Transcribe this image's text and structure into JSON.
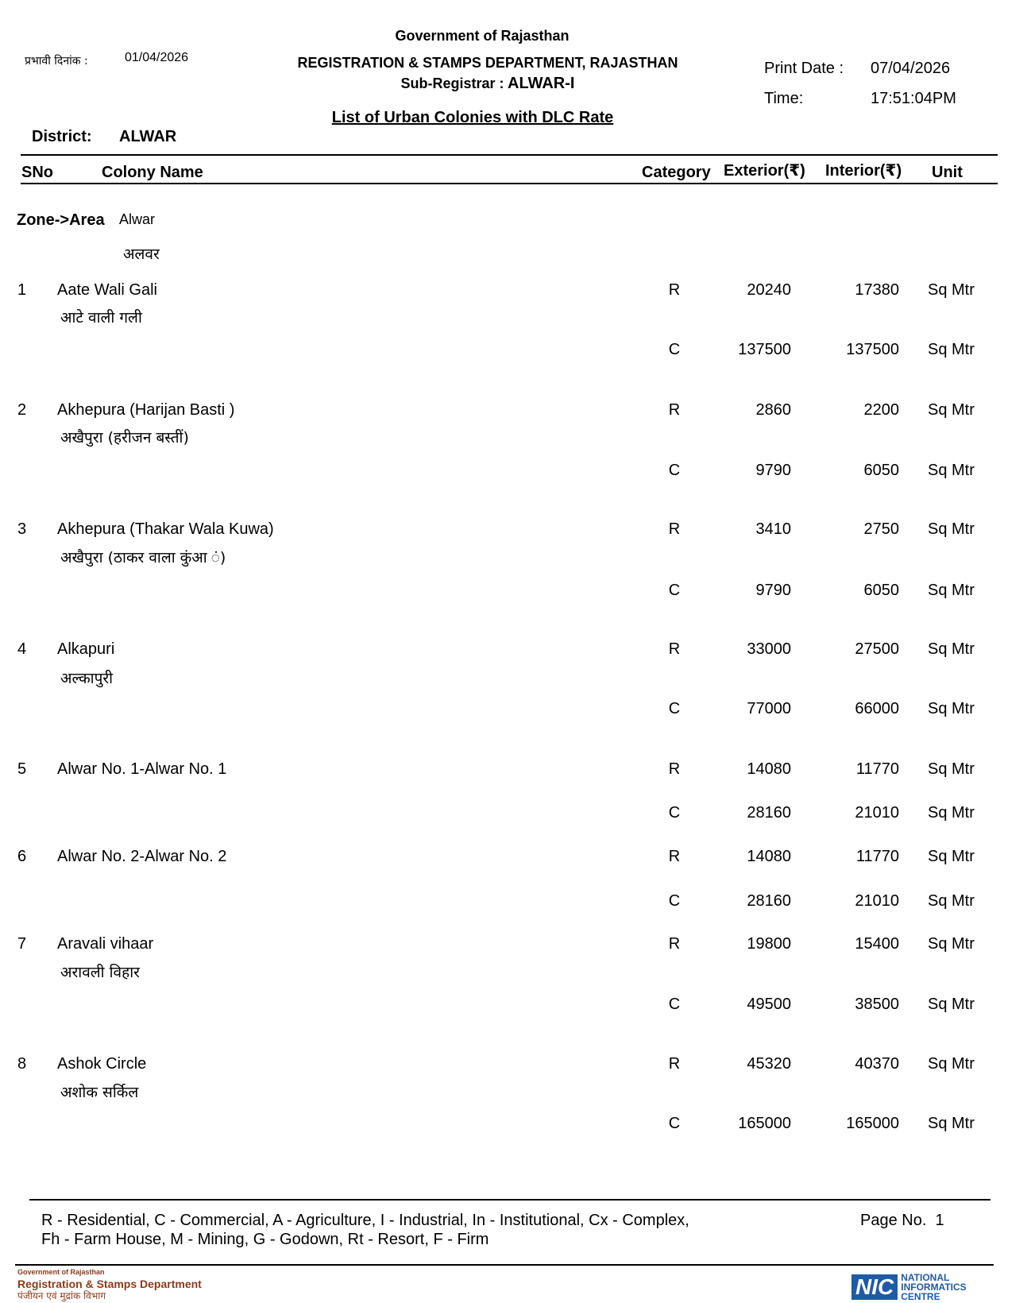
{
  "header": {
    "govt": "Government of Rajasthan",
    "effective_label": "प्रभावी दिनांक :",
    "effective_date": "01/04/2026",
    "department": "REGISTRATION & STAMPS DEPARTMENT, RAJASTHAN",
    "subregistrar_label": "Sub-Registrar :",
    "subregistrar": "ALWAR-I",
    "print_date_label": "Print Date :",
    "print_date": "07/04/2026",
    "time_label": "Time:",
    "time": "17:51:04PM",
    "title": "List of Urban Colonies with DLC Rate",
    "district_label": "District:",
    "district": "ALWAR"
  },
  "columns": {
    "sno": "SNo",
    "colony": "Colony Name",
    "category": "Category",
    "exterior": "Exterior(₹)",
    "interior": "Interior(₹)",
    "unit": "Unit"
  },
  "zone": {
    "label": "Zone->Area",
    "value": "Alwar",
    "value_hi": "अलवर"
  },
  "rows": [
    {
      "sno": "1",
      "name": "Aate Wali Gali",
      "name_hi": "आटे वाली गली",
      "rates": [
        {
          "cat": "R",
          "ext": "20240",
          "int": "17380",
          "unit": "Sq Mtr"
        },
        {
          "cat": "C",
          "ext": "137500",
          "int": "137500",
          "unit": "Sq Mtr"
        }
      ]
    },
    {
      "sno": "2",
      "name": "Akhepura (Harijan Basti )",
      "name_hi": "अखैपुरा (हरीजन बस्तीं)",
      "rates": [
        {
          "cat": "R",
          "ext": "2860",
          "int": "2200",
          "unit": "Sq Mtr"
        },
        {
          "cat": "C",
          "ext": "9790",
          "int": "6050",
          "unit": "Sq Mtr"
        }
      ]
    },
    {
      "sno": "3",
      "name": "Akhepura (Thakar Wala Kuwa)",
      "name_hi": "अखैपुरा (ठाकर वाला कुंआ ं)",
      "rates": [
        {
          "cat": "R",
          "ext": "3410",
          "int": "2750",
          "unit": "Sq Mtr"
        },
        {
          "cat": "C",
          "ext": "9790",
          "int": "6050",
          "unit": "Sq Mtr"
        }
      ]
    },
    {
      "sno": "4",
      "name": "Alkapuri",
      "name_hi": "अल्कापुरी",
      "rates": [
        {
          "cat": "R",
          "ext": "33000",
          "int": "27500",
          "unit": "Sq Mtr"
        },
        {
          "cat": "C",
          "ext": "77000",
          "int": "66000",
          "unit": "Sq Mtr"
        }
      ]
    },
    {
      "sno": "5",
      "name": "Alwar No. 1-Alwar No. 1",
      "name_hi": "",
      "rates": [
        {
          "cat": "R",
          "ext": "14080",
          "int": "11770",
          "unit": "Sq Mtr"
        },
        {
          "cat": "C",
          "ext": "28160",
          "int": "21010",
          "unit": "Sq Mtr"
        }
      ]
    },
    {
      "sno": "6",
      "name": "Alwar No. 2-Alwar No. 2",
      "name_hi": "",
      "rates": [
        {
          "cat": "R",
          "ext": "14080",
          "int": "11770",
          "unit": "Sq Mtr"
        },
        {
          "cat": "C",
          "ext": "28160",
          "int": "21010",
          "unit": "Sq Mtr"
        }
      ]
    },
    {
      "sno": "7",
      "name": "Aravali vihaar",
      "name_hi": "अरावली विहार",
      "rates": [
        {
          "cat": "R",
          "ext": "19800",
          "int": "15400",
          "unit": "Sq Mtr"
        },
        {
          "cat": "C",
          "ext": "49500",
          "int": "38500",
          "unit": "Sq Mtr"
        }
      ]
    },
    {
      "sno": "8",
      "name": "Ashok Circle",
      "name_hi": "अशोक सर्किल",
      "rates": [
        {
          "cat": "R",
          "ext": "45320",
          "int": "40370",
          "unit": "Sq Mtr"
        },
        {
          "cat": "C",
          "ext": "165000",
          "int": "165000",
          "unit": "Sq Mtr"
        }
      ]
    }
  ],
  "footer": {
    "legend_line1": "R - Residential, C - Commercial, A - Agriculture, I - Industrial, In - Institutional, Cx - Complex,",
    "legend_line2": "Fh - Farm House, M - Mining, G - Godown, Rt - Resort, F - Firm",
    "page_label": "Page No.",
    "page": "1",
    "logo_left": {
      "line1": "Government of Rajasthan",
      "line2": "Registration & Stamps Department",
      "line3": "पंजीयन एवं मुद्रांक विभाग",
      "color": "#8b3a1a"
    },
    "logo_right": {
      "mark": "NIC",
      "text": [
        "NATIONAL",
        "INFORMATICS",
        "CENTRE"
      ],
      "color": "#1f5aa6"
    }
  }
}
